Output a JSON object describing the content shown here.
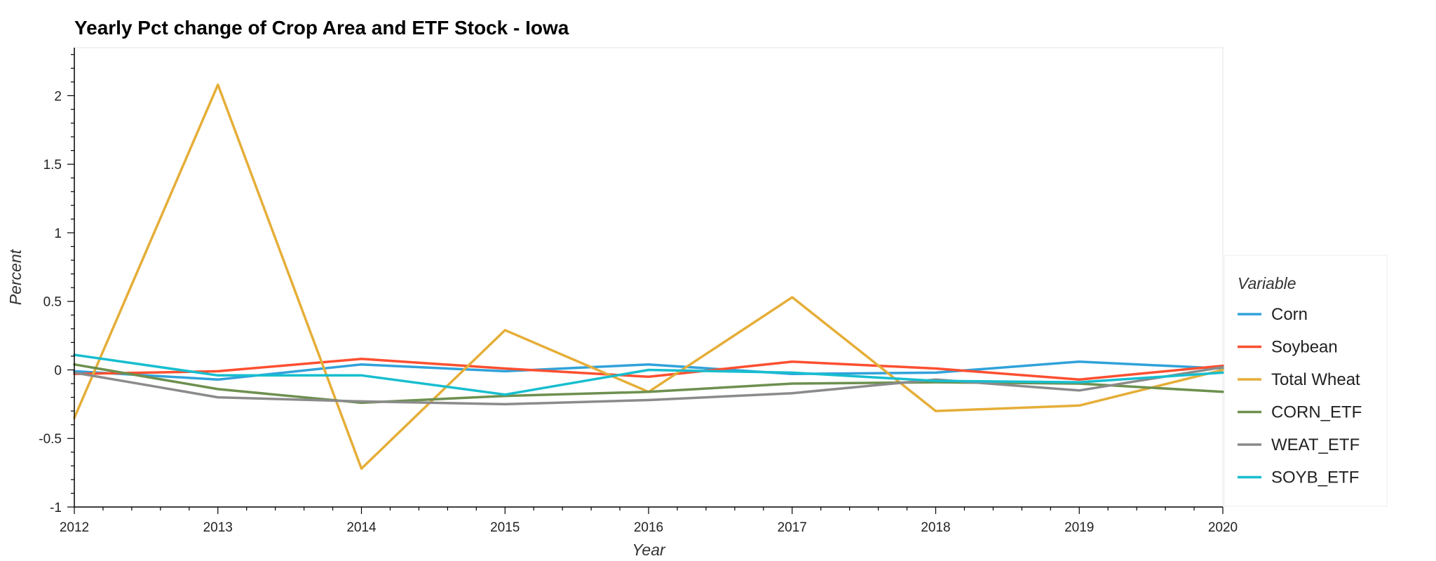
{
  "chart_data": {
    "type": "line",
    "title": "Yearly Pct change of Crop Area and ETF Stock - Iowa",
    "xlabel": "Year",
    "ylabel": "Percent",
    "x": [
      2012,
      2013,
      2014,
      2015,
      2016,
      2017,
      2018,
      2019,
      2020
    ],
    "xlim": [
      2012,
      2020
    ],
    "ylim": [
      -1,
      2.35
    ],
    "y_ticks": [
      -1,
      -0.5,
      0,
      0.5,
      1,
      1.5,
      2
    ],
    "y_tick_labels": [
      "-1",
      "-0.5",
      "0",
      "0.5",
      "1",
      "1.5",
      "2"
    ],
    "x_tick_labels": [
      "2012",
      "2013",
      "2014",
      "2015",
      "2016",
      "2017",
      "2018",
      "2019",
      "2020"
    ],
    "grid": false,
    "legend": {
      "title": "Variable",
      "placement": "right"
    },
    "series": [
      {
        "name": "Corn",
        "color": "#30a2da",
        "values": [
          -0.01,
          -0.07,
          0.04,
          -0.01,
          0.04,
          -0.03,
          -0.02,
          0.06,
          0.01
        ]
      },
      {
        "name": "Soybean",
        "color": "#fc4f30",
        "values": [
          -0.03,
          -0.01,
          0.08,
          0.01,
          -0.05,
          0.06,
          0.01,
          -0.07,
          0.03
        ]
      },
      {
        "name": "Total Wheat",
        "color": "#e5ae38",
        "values": [
          -0.35,
          2.08,
          -0.72,
          0.29,
          -0.16,
          0.53,
          -0.3,
          -0.26,
          0.0
        ]
      },
      {
        "name": "CORN_ETF",
        "color": "#6d904f",
        "values": [
          0.04,
          -0.14,
          -0.24,
          -0.19,
          -0.16,
          -0.1,
          -0.09,
          -0.1,
          -0.16
        ]
      },
      {
        "name": "WEAT_ETF",
        "color": "#8b8b8b",
        "values": [
          -0.02,
          -0.2,
          -0.23,
          -0.25,
          -0.22,
          -0.17,
          -0.07,
          -0.15,
          0.02
        ]
      },
      {
        "name": "SOYB_ETF",
        "color": "#17becf",
        "values": [
          0.11,
          -0.04,
          -0.04,
          -0.18,
          0.0,
          -0.02,
          -0.08,
          -0.09,
          -0.02
        ]
      }
    ]
  }
}
